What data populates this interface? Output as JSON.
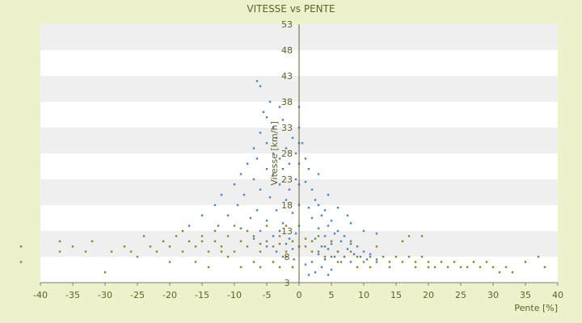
{
  "chart_data": {
    "type": "scatter",
    "title": "VITESSE vs PENTE",
    "xlabel": "Pente [%]",
    "ylabel": "Vitesse [km/h]",
    "xlim": [
      -40,
      40
    ],
    "ylim": [
      3,
      53
    ],
    "xticks": [
      -40,
      -35,
      -30,
      -25,
      -20,
      -15,
      -10,
      -5,
      0,
      5,
      10,
      15,
      20,
      25,
      30,
      35,
      40
    ],
    "yticks": [
      3,
      8,
      13,
      18,
      23,
      28,
      33,
      38,
      43,
      48,
      53
    ],
    "grid": "alternating horizontal bands",
    "legend": "none",
    "colors": {
      "series_1": "#3d86d6",
      "series_2": "#8a8a10",
      "band": "#efefef",
      "plot_bg": "#ffffff"
    },
    "series": [
      {
        "color": "#3d86d6",
        "points": [
          [
            -6.5,
            42
          ],
          [
            -6,
            41
          ],
          [
            -4.5,
            38
          ],
          [
            -3,
            37
          ],
          [
            -5.5,
            36
          ],
          [
            -5,
            35
          ],
          [
            -2.5,
            34.5
          ],
          [
            -4,
            33
          ],
          [
            -6,
            32
          ],
          [
            -3.5,
            31
          ],
          [
            -1,
            31
          ],
          [
            -5,
            30
          ],
          [
            -2,
            29
          ],
          [
            -7,
            29
          ],
          [
            -4,
            28
          ],
          [
            -0.5,
            28
          ],
          [
            -6.5,
            27
          ],
          [
            -3,
            27
          ],
          [
            -1.5,
            26
          ],
          [
            -8,
            26
          ],
          [
            -5,
            25
          ],
          [
            -2.5,
            25
          ],
          [
            -9,
            24
          ],
          [
            -4,
            24
          ],
          [
            -0.5,
            23
          ],
          [
            -7,
            23
          ],
          [
            -10,
            22
          ],
          [
            -3,
            22
          ],
          [
            -6,
            21
          ],
          [
            -1.5,
            21
          ],
          [
            -12,
            20
          ],
          [
            -8.5,
            20
          ],
          [
            -4.5,
            19.5
          ],
          [
            -2,
            19
          ],
          [
            -13,
            18
          ],
          [
            -9.5,
            18
          ],
          [
            -6.5,
            17
          ],
          [
            -3.5,
            17
          ],
          [
            -1,
            16.5
          ],
          [
            -15,
            16
          ],
          [
            -11,
            16
          ],
          [
            -7.5,
            15.5
          ],
          [
            -5,
            15
          ],
          [
            -2.5,
            14.5
          ],
          [
            -17,
            14
          ],
          [
            -12.5,
            14
          ],
          [
            -9,
            13.5
          ],
          [
            -6,
            13
          ],
          [
            -3,
            13
          ],
          [
            -0.5,
            12.5
          ],
          [
            -4,
            12
          ],
          [
            -1.5,
            11.5
          ],
          [
            -7,
            11.5
          ],
          [
            -2,
            10.5
          ],
          [
            -5,
            10
          ],
          [
            -3.5,
            9
          ],
          [
            -1,
            9.5
          ],
          [
            -2.5,
            8
          ],
          [
            -0.8,
            7.5
          ],
          [
            -4,
            7
          ],
          [
            0,
            37
          ],
          [
            0,
            33
          ],
          [
            0,
            30
          ],
          [
            0,
            26
          ],
          [
            0,
            22
          ],
          [
            0,
            18
          ],
          [
            0,
            14
          ],
          [
            0,
            10
          ],
          [
            0.5,
            30
          ],
          [
            1,
            27
          ],
          [
            1.5,
            25
          ],
          [
            1,
            22.5
          ],
          [
            2,
            21
          ],
          [
            2.5,
            19
          ],
          [
            3,
            18
          ],
          [
            1.5,
            17.5
          ],
          [
            4,
            17
          ],
          [
            3.5,
            16
          ],
          [
            2,
            15.5
          ],
          [
            5,
            15
          ],
          [
            4.5,
            14
          ],
          [
            3,
            13.5
          ],
          [
            6,
            13
          ],
          [
            5.5,
            12.5
          ],
          [
            4,
            12
          ],
          [
            7,
            12
          ],
          [
            2.5,
            11.5
          ],
          [
            6.5,
            11
          ],
          [
            8,
            11
          ],
          [
            5,
            10.5
          ],
          [
            3.5,
            10
          ],
          [
            9,
            10
          ],
          [
            7.5,
            9.5
          ],
          [
            4.5,
            9.5
          ],
          [
            10,
            9
          ],
          [
            6,
            9
          ],
          [
            8.5,
            8.5
          ],
          [
            11,
            8.5
          ],
          [
            3,
            8.5
          ],
          [
            5.5,
            8
          ],
          [
            9.5,
            8
          ],
          [
            7,
            8
          ],
          [
            12,
            7.5
          ],
          [
            4,
            7.5
          ],
          [
            10.5,
            7.5
          ],
          [
            2,
            7
          ],
          [
            6.5,
            7
          ],
          [
            8,
            7
          ],
          [
            1,
            6.5
          ],
          [
            3.5,
            6
          ],
          [
            5,
            5.5
          ],
          [
            2.5,
            5
          ],
          [
            4.5,
            4.5
          ],
          [
            1.5,
            4.5
          ],
          [
            3,
            24
          ],
          [
            4.5,
            20
          ],
          [
            6,
            17.5
          ],
          [
            7.5,
            16
          ],
          [
            8,
            14.5
          ],
          [
            10,
            13
          ],
          [
            12,
            12.5
          ]
        ]
      },
      {
        "color": "#8a8a10",
        "points": [
          [
            -43,
            7
          ],
          [
            -43,
            10
          ],
          [
            -37,
            11
          ],
          [
            -37,
            9
          ],
          [
            -35,
            10
          ],
          [
            -33,
            9
          ],
          [
            -32,
            11
          ],
          [
            -30,
            5
          ],
          [
            -29,
            9
          ],
          [
            -27,
            10
          ],
          [
            -26,
            9
          ],
          [
            -24,
            12
          ],
          [
            -23,
            10
          ],
          [
            -22,
            9
          ],
          [
            -21,
            11
          ],
          [
            -20,
            10
          ],
          [
            -19,
            12
          ],
          [
            -18,
            9
          ],
          [
            -17,
            11
          ],
          [
            -16,
            10
          ],
          [
            -15,
            12
          ],
          [
            -14,
            9
          ],
          [
            -13,
            11
          ],
          [
            -12,
            10
          ],
          [
            -11,
            12
          ],
          [
            -10,
            9
          ],
          [
            -9,
            11
          ],
          [
            -8,
            10
          ],
          [
            -7,
            12
          ],
          [
            -6,
            9
          ],
          [
            -5,
            11
          ],
          [
            -4,
            10
          ],
          [
            -3,
            12
          ],
          [
            -2,
            9
          ],
          [
            -1,
            11
          ],
          [
            0,
            10
          ],
          [
            -14,
            6
          ],
          [
            -9,
            6
          ],
          [
            -6,
            6
          ],
          [
            -3,
            6
          ],
          [
            -1,
            6
          ],
          [
            -25,
            8
          ],
          [
            -20,
            7
          ],
          [
            -16,
            7
          ],
          [
            -11,
            8
          ],
          [
            -7,
            7
          ],
          [
            -4,
            7
          ],
          [
            -2,
            8
          ],
          [
            -18,
            13
          ],
          [
            -13,
            13
          ],
          [
            -8,
            13
          ],
          [
            -5,
            14
          ],
          [
            -2,
            14
          ],
          [
            -10,
            14
          ],
          [
            -15,
            11
          ],
          [
            -6,
            10.5
          ],
          [
            -3,
            10.5
          ],
          [
            -12,
            9
          ],
          [
            1,
            10
          ],
          [
            2,
            11
          ],
          [
            3,
            9
          ],
          [
            4,
            10
          ],
          [
            5,
            8
          ],
          [
            6,
            9
          ],
          [
            7,
            8
          ],
          [
            8,
            9
          ],
          [
            9,
            8
          ],
          [
            10,
            7
          ],
          [
            11,
            8
          ],
          [
            12,
            7
          ],
          [
            13,
            8
          ],
          [
            14,
            7
          ],
          [
            15,
            8
          ],
          [
            16,
            7
          ],
          [
            17,
            8
          ],
          [
            18,
            7
          ],
          [
            19,
            8
          ],
          [
            20,
            7
          ],
          [
            21,
            6
          ],
          [
            22,
            7
          ],
          [
            23,
            6
          ],
          [
            24,
            7
          ],
          [
            25,
            6
          ],
          [
            26,
            6
          ],
          [
            27,
            7
          ],
          [
            28,
            6
          ],
          [
            29,
            7
          ],
          [
            30,
            6
          ],
          [
            31,
            5
          ],
          [
            32,
            6
          ],
          [
            33,
            5
          ],
          [
            35,
            7
          ],
          [
            37,
            8
          ],
          [
            38,
            6
          ],
          [
            17,
            12
          ],
          [
            19,
            12
          ],
          [
            16,
            11
          ],
          [
            12,
            10
          ],
          [
            8,
            10.5
          ],
          [
            5,
            11
          ],
          [
            3,
            12
          ],
          [
            1,
            11.5
          ],
          [
            2,
            9
          ],
          [
            4,
            8
          ],
          [
            6,
            7
          ],
          [
            9,
            6
          ],
          [
            11,
            6
          ],
          [
            14,
            6
          ],
          [
            18,
            6
          ],
          [
            20,
            6
          ]
        ]
      }
    ]
  }
}
